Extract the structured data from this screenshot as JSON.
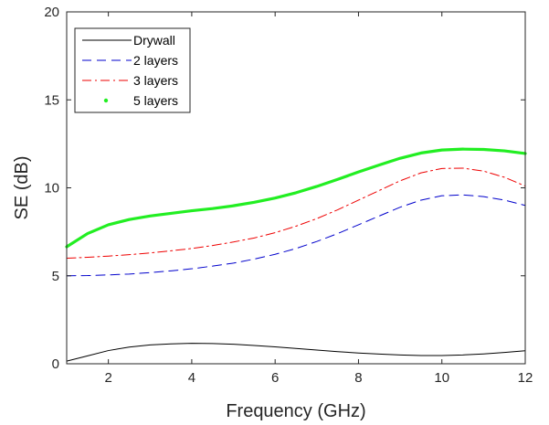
{
  "chart_data": {
    "type": "line",
    "title": "",
    "xlabel": "Frequency (GHz)",
    "ylabel": "SE (dB)",
    "xlim": [
      1,
      12
    ],
    "ylim": [
      0,
      20
    ],
    "xticks": [
      2,
      4,
      6,
      8,
      10,
      12
    ],
    "yticks": [
      0,
      5,
      10,
      15,
      20
    ],
    "grid": false,
    "legend_position": "top-left",
    "x": [
      1,
      1.5,
      2,
      2.5,
      3,
      3.5,
      4,
      4.5,
      5,
      5.5,
      6,
      6.5,
      7,
      7.5,
      8,
      8.5,
      9,
      9.5,
      10,
      10.5,
      11,
      11.5,
      12
    ],
    "series": [
      {
        "name": "Drywall",
        "color": "#000000",
        "style": "solid",
        "values": [
          0.15,
          0.45,
          0.75,
          0.95,
          1.07,
          1.13,
          1.16,
          1.15,
          1.11,
          1.04,
          0.96,
          0.87,
          0.78,
          0.69,
          0.61,
          0.55,
          0.5,
          0.47,
          0.47,
          0.5,
          0.56,
          0.64,
          0.74
        ]
      },
      {
        "name": "2 layers",
        "color": "#0000cc",
        "style": "dashed",
        "values": [
          5.0,
          5.01,
          5.05,
          5.1,
          5.18,
          5.28,
          5.4,
          5.55,
          5.72,
          5.95,
          6.22,
          6.55,
          6.95,
          7.4,
          7.9,
          8.4,
          8.9,
          9.3,
          9.55,
          9.6,
          9.5,
          9.3,
          9.0
        ]
      },
      {
        "name": "3 layers",
        "color": "#ee0000",
        "style": "dashdot",
        "values": [
          6.0,
          6.05,
          6.12,
          6.2,
          6.3,
          6.42,
          6.55,
          6.72,
          6.92,
          7.15,
          7.45,
          7.82,
          8.25,
          8.75,
          9.3,
          9.85,
          10.4,
          10.85,
          11.1,
          11.12,
          10.95,
          10.6,
          10.1
        ]
      },
      {
        "name": "5 layers",
        "color": "#22ee22",
        "style": "thick",
        "values": [
          6.65,
          7.4,
          7.9,
          8.2,
          8.4,
          8.55,
          8.7,
          8.82,
          8.98,
          9.18,
          9.42,
          9.72,
          10.08,
          10.48,
          10.9,
          11.3,
          11.68,
          11.98,
          12.15,
          12.2,
          12.18,
          12.1,
          11.95
        ]
      }
    ]
  }
}
